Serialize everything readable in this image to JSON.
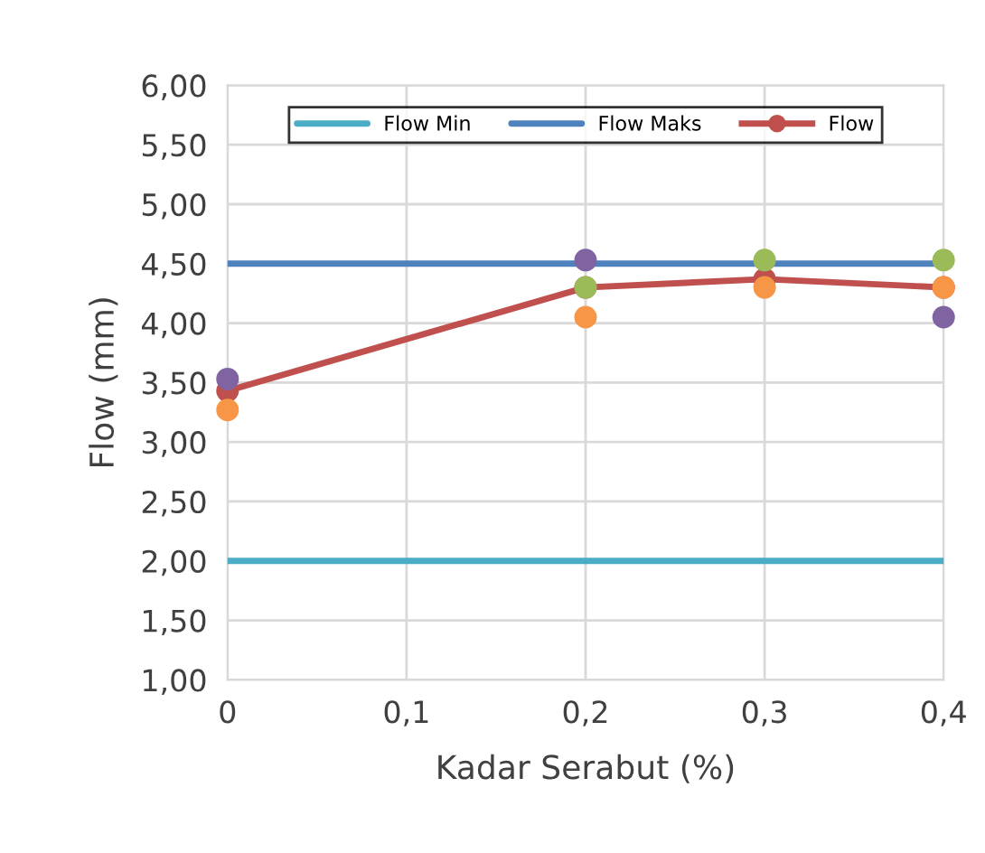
{
  "chart_data": {
    "type": "line",
    "xlabel": "Kadar Serabut (%)",
    "ylabel": "Flow (mm)",
    "xlim": [
      0,
      0.4
    ],
    "ylim": [
      1,
      6
    ],
    "xticks": [
      {
        "value": 0,
        "label": "0"
      },
      {
        "value": 0.1,
        "label": "0,1"
      },
      {
        "value": 0.2,
        "label": "0,2"
      },
      {
        "value": 0.3,
        "label": "0,3"
      },
      {
        "value": 0.4,
        "label": "0,4"
      }
    ],
    "yticks": [
      {
        "value": 1,
        "label": "1,00"
      },
      {
        "value": 1.5,
        "label": "1,50"
      },
      {
        "value": 2,
        "label": "2,00"
      },
      {
        "value": 2.5,
        "label": "2,50"
      },
      {
        "value": 3,
        "label": "3,00"
      },
      {
        "value": 3.5,
        "label": "3,50"
      },
      {
        "value": 4,
        "label": "4,00"
      },
      {
        "value": 4.5,
        "label": "4,50"
      },
      {
        "value": 5,
        "label": "5,00"
      },
      {
        "value": 5.5,
        "label": "5,50"
      },
      {
        "value": 6,
        "label": "6,00"
      }
    ],
    "grid": true,
    "legend": "top",
    "series": [
      {
        "name": "Flow Min",
        "color": "#4bacc6",
        "x": [
          0,
          0.4
        ],
        "values": [
          2,
          2
        ],
        "marker": "none"
      },
      {
        "name": "Flow Maks",
        "color": "#4f81bd",
        "x": [
          0,
          0.4
        ],
        "values": [
          4.5,
          4.5
        ],
        "marker": "none"
      },
      {
        "name": "Flow",
        "color": "#c0504d",
        "x": [
          0,
          0.2,
          0.3,
          0.4
        ],
        "values": [
          3.43,
          4.3,
          4.37,
          4.3
        ],
        "marker": "circle"
      },
      {
        "type": "scatter",
        "color": "#8064a2",
        "x": [
          0,
          0.2,
          0.4
        ],
        "values": [
          3.53,
          4.53,
          4.05
        ],
        "marker": "circle"
      },
      {
        "type": "scatter",
        "color": "#9bbb59",
        "x": [
          0.2,
          0.3,
          0.4
        ],
        "values": [
          4.3,
          4.53,
          4.53
        ],
        "marker": "circle"
      },
      {
        "type": "scatter",
        "color": "#f79646",
        "x": [
          0,
          0.2,
          0.3,
          0.4
        ],
        "values": [
          3.27,
          4.05,
          4.3,
          4.3
        ],
        "marker": "circle"
      }
    ]
  }
}
